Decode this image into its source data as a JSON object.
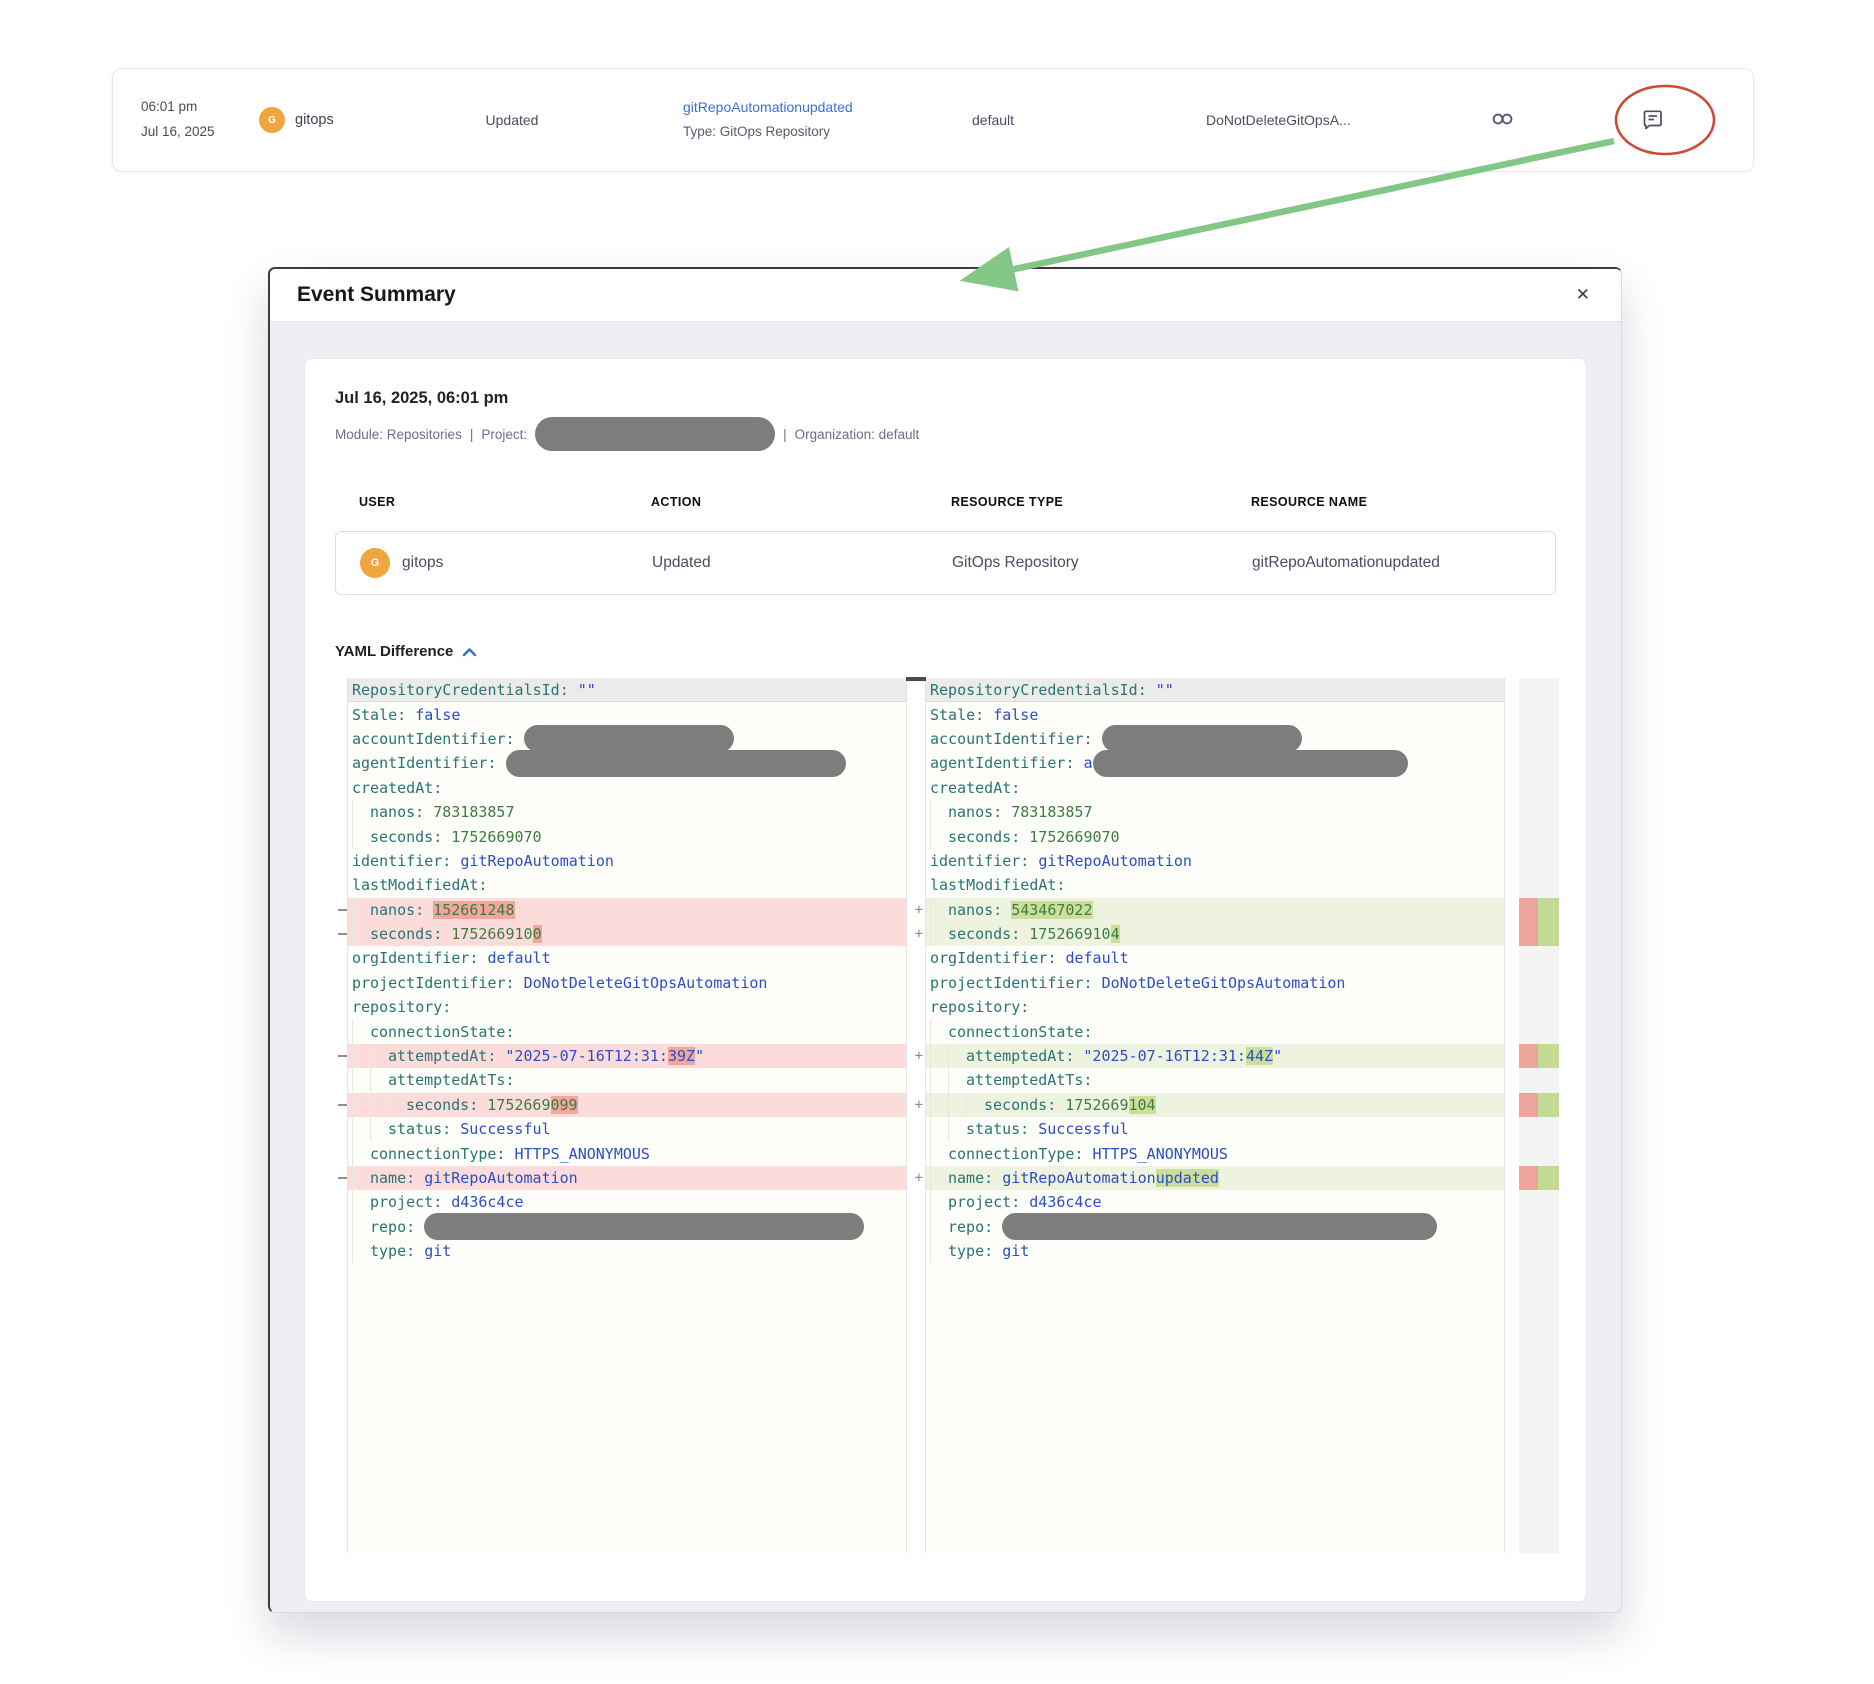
{
  "event_row": {
    "time": "06:01 pm",
    "date": "Jul 16, 2025",
    "avatar_initial": "G",
    "user": "gitops",
    "action": "Updated",
    "resource_name": "gitRepoAutomationupdated",
    "resource_type_label": "Type: GitOps Repository",
    "organization": "default",
    "project": "DoNotDeleteGitOpsA..."
  },
  "modal": {
    "title": "Event Summary",
    "close_label": "✕",
    "datetime": "Jul 16, 2025, 06:01 pm",
    "meta": {
      "module_label": "Module: Repositories",
      "separator": "|",
      "project_label": "Project:",
      "organization_label": "Organization: default"
    },
    "table": {
      "headers": [
        "USER",
        "ACTION",
        "RESOURCE TYPE",
        "RESOURCE NAME"
      ],
      "row": {
        "avatar_initial": "G",
        "user": "gitops",
        "action": "Updated",
        "resource_type": "GitOps Repository",
        "resource_name": "gitRepoAutomationupdated"
      }
    },
    "yaml_section_label": "YAML Difference"
  },
  "colors": {
    "accent_blue": "#3a6fe0",
    "avatar_orange": "#f0a63f",
    "removed_row": "#fbdcda",
    "removed_word": "#f2a69f",
    "added_row": "#eef3e0",
    "added_word": "#cbdf9b",
    "yaml_key": "#2a7474",
    "yaml_string": "#2b4ec5",
    "yaml_number": "#3d7c42",
    "arrow_green": "#82c785",
    "annotation_red": "#cf4a35",
    "redaction_gray": "#7d7d7d"
  },
  "diff": {
    "left": [
      {
        "i": 0,
        "key": "RepositoryCredentialsId",
        "head": true,
        "parts": [
          {
            "t": "\"\"",
            "c": "str"
          }
        ]
      },
      {
        "i": 0,
        "key": "Stale",
        "parts": [
          {
            "t": "false",
            "c": "str"
          }
        ]
      },
      {
        "i": 0,
        "key": "accountIdentifier",
        "parts": [
          {
            "blob": 210
          }
        ]
      },
      {
        "i": 0,
        "key": "agentIdentifier",
        "parts": [
          {
            "blob": 340
          }
        ]
      },
      {
        "i": 0,
        "key": "createdAt"
      },
      {
        "i": 1,
        "key": "nanos",
        "parts": [
          {
            "t": "783183857",
            "c": "num"
          }
        ]
      },
      {
        "i": 1,
        "key": "seconds",
        "parts": [
          {
            "t": "1752669070",
            "c": "num"
          }
        ]
      },
      {
        "i": 0,
        "key": "identifier",
        "parts": [
          {
            "t": "gitRepoAutomation",
            "c": "str"
          }
        ]
      },
      {
        "i": 0,
        "key": "lastModifiedAt"
      },
      {
        "i": 1,
        "key": "nanos",
        "chg": "del",
        "parts": [
          {
            "t": "152661248",
            "c": "num",
            "hl": 1
          }
        ]
      },
      {
        "i": 1,
        "key": "seconds",
        "chg": "del",
        "parts": [
          {
            "t": "175266910",
            "c": "num"
          },
          {
            "t": "0",
            "c": "num",
            "hl": 1
          }
        ]
      },
      {
        "i": 0,
        "key": "orgIdentifier",
        "parts": [
          {
            "t": "default",
            "c": "str"
          }
        ]
      },
      {
        "i": 0,
        "key": "projectIdentifier",
        "parts": [
          {
            "t": "DoNotDeleteGitOpsAutomation",
            "c": "str"
          }
        ]
      },
      {
        "i": 0,
        "key": "repository"
      },
      {
        "i": 1,
        "key": "connectionState"
      },
      {
        "i": 2,
        "key": "attemptedAt",
        "chg": "del",
        "parts": [
          {
            "t": "\"2025-07-16T12:31:",
            "c": "str"
          },
          {
            "t": "39Z",
            "c": "str",
            "hl": 1
          },
          {
            "t": "\"",
            "c": "str"
          }
        ]
      },
      {
        "i": 2,
        "key": "attemptedAtTs"
      },
      {
        "i": 3,
        "key": "seconds",
        "chg": "del",
        "parts": [
          {
            "t": "1752669",
            "c": "num"
          },
          {
            "t": "099",
            "c": "num",
            "hl": 1
          }
        ]
      },
      {
        "i": 2,
        "key": "status",
        "parts": [
          {
            "t": "Successful",
            "c": "str"
          }
        ]
      },
      {
        "i": 1,
        "key": "connectionType",
        "parts": [
          {
            "t": "HTTPS_ANONYMOUS",
            "c": "str"
          }
        ]
      },
      {
        "i": 1,
        "key": "name",
        "chg": "del",
        "parts": [
          {
            "t": "gitRepoAutomation",
            "c": "str"
          }
        ]
      },
      {
        "i": 1,
        "key": "project",
        "parts": [
          {
            "t": "d436c4ce",
            "c": "str"
          }
        ]
      },
      {
        "i": 1,
        "key": "repo",
        "parts": [
          {
            "blob": 440
          }
        ]
      },
      {
        "i": 1,
        "key": "type",
        "parts": [
          {
            "t": "git",
            "c": "str"
          }
        ]
      }
    ],
    "right": [
      {
        "i": 0,
        "key": "RepositoryCredentialsId",
        "head": true,
        "parts": [
          {
            "t": "\"\"",
            "c": "str"
          }
        ]
      },
      {
        "i": 0,
        "key": "Stale",
        "parts": [
          {
            "t": "false",
            "c": "str"
          }
        ]
      },
      {
        "i": 0,
        "key": "accountIdentifier",
        "parts": [
          {
            "blob": 200
          }
        ]
      },
      {
        "i": 0,
        "key": "agentIdentifier",
        "parts": [
          {
            "t": "a",
            "c": "str"
          },
          {
            "blob": 315
          }
        ]
      },
      {
        "i": 0,
        "key": "createdAt"
      },
      {
        "i": 1,
        "key": "nanos",
        "parts": [
          {
            "t": "783183857",
            "c": "num"
          }
        ]
      },
      {
        "i": 1,
        "key": "seconds",
        "parts": [
          {
            "t": "1752669070",
            "c": "num"
          }
        ]
      },
      {
        "i": 0,
        "key": "identifier",
        "parts": [
          {
            "t": "gitRepoAutomation",
            "c": "str"
          }
        ]
      },
      {
        "i": 0,
        "key": "lastModifiedAt"
      },
      {
        "i": 1,
        "key": "nanos",
        "chg": "add",
        "parts": [
          {
            "t": "543467022",
            "c": "num",
            "hl": 1
          }
        ]
      },
      {
        "i": 1,
        "key": "seconds",
        "chg": "add",
        "parts": [
          {
            "t": "175266910",
            "c": "num"
          },
          {
            "t": "4",
            "c": "num",
            "hl": 1
          }
        ]
      },
      {
        "i": 0,
        "key": "orgIdentifier",
        "parts": [
          {
            "t": "default",
            "c": "str"
          }
        ]
      },
      {
        "i": 0,
        "key": "projectIdentifier",
        "parts": [
          {
            "t": "DoNotDeleteGitOpsAutomation",
            "c": "str"
          }
        ]
      },
      {
        "i": 0,
        "key": "repository"
      },
      {
        "i": 1,
        "key": "connectionState"
      },
      {
        "i": 2,
        "key": "attemptedAt",
        "chg": "add",
        "parts": [
          {
            "t": "\"2025-07-16T12:31:",
            "c": "str"
          },
          {
            "t": "44Z",
            "c": "str",
            "hl": 1
          },
          {
            "t": "\"",
            "c": "str"
          }
        ]
      },
      {
        "i": 2,
        "key": "attemptedAtTs"
      },
      {
        "i": 3,
        "key": "seconds",
        "chg": "add",
        "parts": [
          {
            "t": "1752669",
            "c": "num"
          },
          {
            "t": "104",
            "c": "num",
            "hl": 1
          }
        ]
      },
      {
        "i": 2,
        "key": "status",
        "parts": [
          {
            "t": "Successful",
            "c": "str"
          }
        ]
      },
      {
        "i": 1,
        "key": "connectionType",
        "parts": [
          {
            "t": "HTTPS_ANONYMOUS",
            "c": "str"
          }
        ]
      },
      {
        "i": 1,
        "key": "name",
        "chg": "add",
        "parts": [
          {
            "t": "gitRepoAutomation",
            "c": "str"
          },
          {
            "t": "updated",
            "c": "str",
            "hl": 1
          }
        ]
      },
      {
        "i": 1,
        "key": "project",
        "parts": [
          {
            "t": "d436c4ce",
            "c": "str"
          }
        ]
      },
      {
        "i": 1,
        "key": "repo",
        "parts": [
          {
            "blob": 435
          }
        ]
      },
      {
        "i": 1,
        "key": "type",
        "parts": [
          {
            "t": "git",
            "c": "str"
          }
        ]
      }
    ]
  }
}
